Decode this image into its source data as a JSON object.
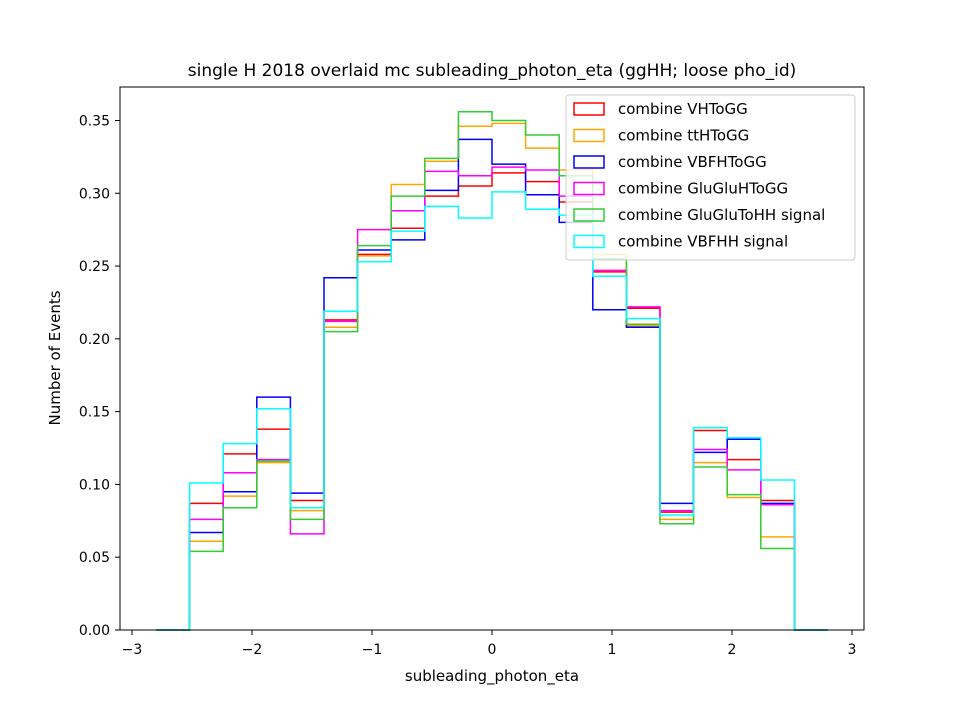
{
  "chart_data": {
    "type": "histogram",
    "title": "single H 2018 overlaid mc subleading_photon_eta (ggHH; loose pho_id)",
    "xlabel": "subleading_photon_eta",
    "ylabel": "Number of Events",
    "xlim": [
      -3.1,
      3.1
    ],
    "ylim": [
      0,
      0.373
    ],
    "xticks": [
      -3,
      -2,
      -1,
      0,
      1,
      2,
      3
    ],
    "xtick_labels": [
      "−3",
      "−2",
      "−1",
      "0",
      "1",
      "2",
      "3"
    ],
    "yticks": [
      0.0,
      0.05,
      0.1,
      0.15,
      0.2,
      0.25,
      0.3,
      0.35
    ],
    "ytick_labels": [
      "0.00",
      "0.05",
      "0.10",
      "0.15",
      "0.20",
      "0.25",
      "0.30",
      "0.35"
    ],
    "grid": false,
    "legend_position": "top-right",
    "bin_edges": [
      -2.8,
      -2.52,
      -2.24,
      -1.96,
      -1.68,
      -1.4,
      -1.12,
      -0.84,
      -0.56,
      -0.28,
      0.0,
      0.28,
      0.56,
      0.84,
      1.12,
      1.4,
      1.68,
      1.96,
      2.24,
      2.52,
      2.8
    ],
    "series": [
      {
        "name": "combine VHToGG",
        "color": "#ff0000",
        "values": [
          0,
          0.087,
          0.121,
          0.138,
          0.089,
          0.213,
          0.258,
          0.276,
          0.298,
          0.305,
          0.314,
          0.308,
          0.294,
          0.246,
          0.221,
          0.081,
          0.137,
          0.117,
          0.089,
          0
        ]
      },
      {
        "name": "combine ttHToGG",
        "color": "#ffa500",
        "values": [
          0,
          0.061,
          0.092,
          0.115,
          0.082,
          0.208,
          0.257,
          0.306,
          0.322,
          0.346,
          0.348,
          0.331,
          0.316,
          0.258,
          0.209,
          0.076,
          0.115,
          0.091,
          0.064,
          0
        ]
      },
      {
        "name": "combine VBFHToGG",
        "color": "#0000ff",
        "values": [
          0,
          0.067,
          0.095,
          0.16,
          0.094,
          0.242,
          0.261,
          0.268,
          0.302,
          0.337,
          0.32,
          0.299,
          0.28,
          0.22,
          0.208,
          0.087,
          0.122,
          0.131,
          0.087,
          0
        ]
      },
      {
        "name": "combine GluGluHToGG",
        "color": "#ff00ff",
        "values": [
          0,
          0.076,
          0.108,
          0.117,
          0.066,
          0.212,
          0.275,
          0.288,
          0.315,
          0.312,
          0.318,
          0.316,
          0.298,
          0.247,
          0.222,
          0.082,
          0.124,
          0.11,
          0.086,
          0
        ]
      },
      {
        "name": "combine GluGluToHH signal",
        "color": "#32cd32",
        "values": [
          0,
          0.054,
          0.084,
          0.116,
          0.076,
          0.205,
          0.264,
          0.298,
          0.324,
          0.356,
          0.35,
          0.34,
          0.312,
          0.255,
          0.21,
          0.073,
          0.112,
          0.093,
          0.056,
          0
        ]
      },
      {
        "name": "combine VBFHH signal",
        "color": "#00ffff",
        "values": [
          0,
          0.101,
          0.128,
          0.152,
          0.084,
          0.219,
          0.253,
          0.274,
          0.291,
          0.283,
          0.301,
          0.289,
          0.285,
          0.243,
          0.214,
          0.079,
          0.139,
          0.132,
          0.103,
          0
        ]
      }
    ]
  }
}
